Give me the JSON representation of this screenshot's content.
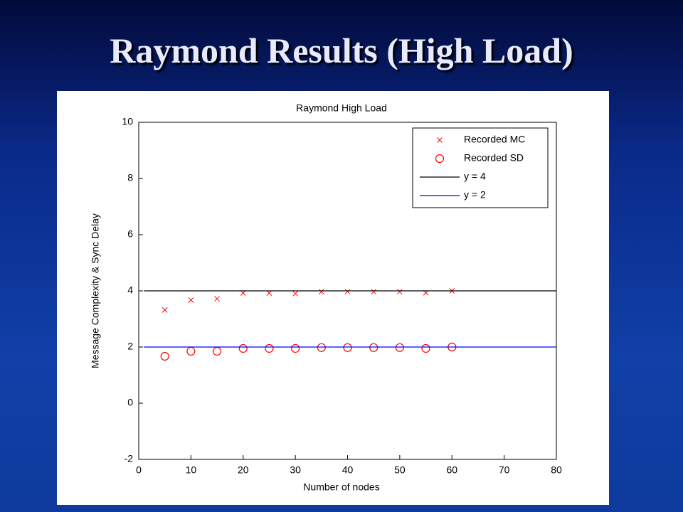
{
  "slide_title": "Raymond Results (High Load)",
  "chart_data": {
    "type": "scatter",
    "title": "Raymond High Load",
    "xlabel": "Number of nodes",
    "ylabel": "Message Complexity & Sync Delay",
    "xlim": [
      0,
      80
    ],
    "ylim": [
      -2,
      10
    ],
    "xticks": [
      0,
      10,
      20,
      30,
      40,
      50,
      60,
      70,
      80
    ],
    "yticks": [
      -2,
      0,
      2,
      4,
      6,
      8,
      10
    ],
    "legend": "upper right",
    "series": [
      {
        "name": "Recorded MC",
        "color": "#ff0000",
        "mark": "x",
        "x": [
          5,
          10,
          15,
          20,
          25,
          30,
          35,
          40,
          45,
          50,
          55,
          60
        ],
        "values": [
          3.32,
          3.67,
          3.72,
          3.92,
          3.92,
          3.9,
          3.97,
          3.97,
          3.97,
          3.97,
          3.93,
          4.0
        ]
      },
      {
        "name": "Recorded SD",
        "color": "#ff0000",
        "mark": "o",
        "x": [
          5,
          10,
          15,
          20,
          25,
          30,
          35,
          40,
          45,
          50,
          55,
          60
        ],
        "values": [
          1.67,
          1.85,
          1.85,
          1.95,
          1.95,
          1.95,
          1.98,
          1.98,
          1.98,
          1.98,
          1.95,
          2.0
        ]
      },
      {
        "name": "y = 4",
        "color": "#000000",
        "mark": "line",
        "x": [
          1,
          80
        ],
        "values": [
          4,
          4
        ]
      },
      {
        "name": "y = 2",
        "color": "#0000ff",
        "mark": "line",
        "x": [
          1,
          80
        ],
        "values": [
          2,
          2
        ]
      }
    ]
  }
}
